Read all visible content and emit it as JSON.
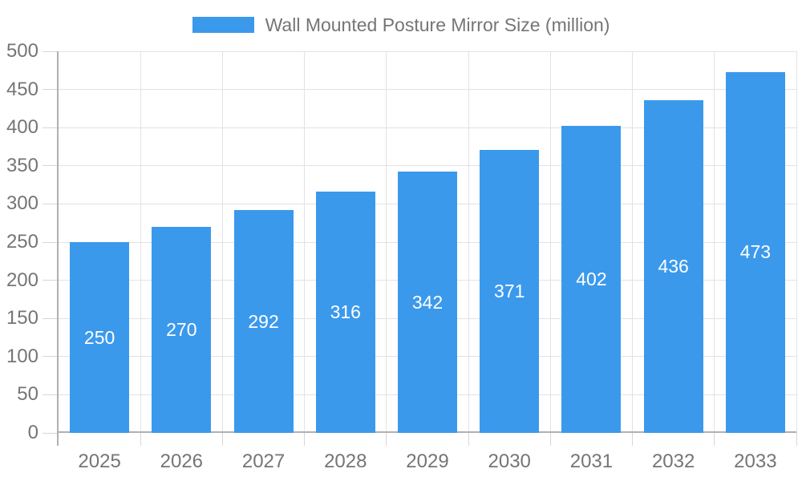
{
  "chart_data": {
    "type": "bar",
    "title": "Wall Mounted Posture Mirror Size (million)",
    "categories": [
      "2025",
      "2026",
      "2027",
      "2028",
      "2029",
      "2030",
      "2031",
      "2032",
      "2033"
    ],
    "values": [
      250,
      270,
      292,
      316,
      342,
      371,
      402,
      436,
      473
    ],
    "series": [
      {
        "name": "Wall Mounted Posture Mirror Size (million)",
        "values": [
          250,
          270,
          292,
          316,
          342,
          371,
          402,
          436,
          473
        ]
      }
    ],
    "xlabel": "",
    "ylabel": "",
    "ylim": [
      0,
      500
    ],
    "ytick_step": 50,
    "yticks": [
      0,
      50,
      100,
      150,
      200,
      250,
      300,
      350,
      400,
      450,
      500
    ],
    "grid": true,
    "legend_position": "top",
    "data_labels": "inside-center-white"
  },
  "legend": {
    "label": "Wall Mounted Posture Mirror Size (million)"
  },
  "colors": {
    "bar": "#3B99EC",
    "grid": "#e2e2e2",
    "tick": "#d6d6d6",
    "axis": "#b0b0b0",
    "text": "#757575",
    "bar_label": "#ffffff",
    "background": "#ffffff"
  }
}
